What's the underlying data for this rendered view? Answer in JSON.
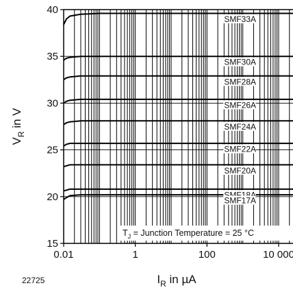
{
  "figure_id": "22725",
  "chart_data": {
    "type": "line",
    "xlabel": {
      "main": "I",
      "sub": "R",
      "rest": " in µA"
    },
    "ylabel": {
      "main": "V",
      "sub": "R",
      "rest": " in V"
    },
    "x_scale": "log",
    "xlim": [
      0.01,
      30000
    ],
    "ylim": [
      15,
      40
    ],
    "x_tick_labels": [
      {
        "value": 0.01,
        "label": "0.01"
      },
      {
        "value": 1,
        "label": "1"
      },
      {
        "value": 100,
        "label": "100"
      },
      {
        "value": 10000,
        "label": "10 000"
      }
    ],
    "y_ticks": [
      15,
      20,
      25,
      30,
      35,
      40
    ],
    "grid": true,
    "annotation": {
      "main": "T",
      "sub": "J",
      "rest": " = Junction Temperature = 25 °C"
    },
    "series": [
      {
        "name": "SMF33A",
        "x": [
          0.01,
          0.012,
          0.015,
          0.03,
          0.1,
          30000
        ],
        "y": [
          38.4,
          39.0,
          39.3,
          39.5,
          39.6,
          39.6
        ]
      },
      {
        "name": "SMF30A",
        "x": [
          0.01,
          0.012,
          0.015,
          0.03,
          0.1,
          30000
        ],
        "y": [
          34.6,
          34.8,
          34.9,
          35.0,
          35.0,
          35.0
        ]
      },
      {
        "name": "SMF28A",
        "x": [
          0.01,
          0.012,
          0.015,
          0.03,
          0.1,
          30000
        ],
        "y": [
          32.5,
          32.7,
          32.8,
          32.9,
          32.9,
          32.9
        ]
      },
      {
        "name": "SMF26A",
        "x": [
          0.01,
          0.012,
          0.015,
          0.03,
          0.1,
          30000
        ],
        "y": [
          30.0,
          30.2,
          30.3,
          30.4,
          30.4,
          30.4
        ]
      },
      {
        "name": "SMF24A",
        "x": [
          0.01,
          0.012,
          0.015,
          0.03,
          0.1,
          30000
        ],
        "y": [
          27.7,
          27.9,
          28.0,
          28.1,
          28.1,
          28.1
        ]
      },
      {
        "name": "SMF22A",
        "x": [
          0.01,
          0.012,
          0.015,
          0.03,
          0.1,
          30000
        ],
        "y": [
          25.4,
          25.6,
          25.7,
          25.7,
          25.7,
          25.7
        ]
      },
      {
        "name": "SMF20A",
        "x": [
          0.01,
          0.012,
          0.015,
          0.03,
          0.1,
          30000
        ],
        "y": [
          23.2,
          23.3,
          23.4,
          23.4,
          23.4,
          23.4
        ]
      },
      {
        "name": "SMF18A",
        "x": [
          0.01,
          0.012,
          0.015,
          0.03,
          0.1,
          30000
        ],
        "y": [
          20.6,
          20.7,
          20.8,
          20.8,
          20.8,
          20.8
        ]
      },
      {
        "name": "SMF17A",
        "x": [
          0.01,
          0.012,
          0.015,
          0.03,
          0.1,
          30000
        ],
        "y": [
          19.7,
          19.9,
          20.1,
          20.2,
          20.2,
          20.2
        ]
      }
    ]
  }
}
